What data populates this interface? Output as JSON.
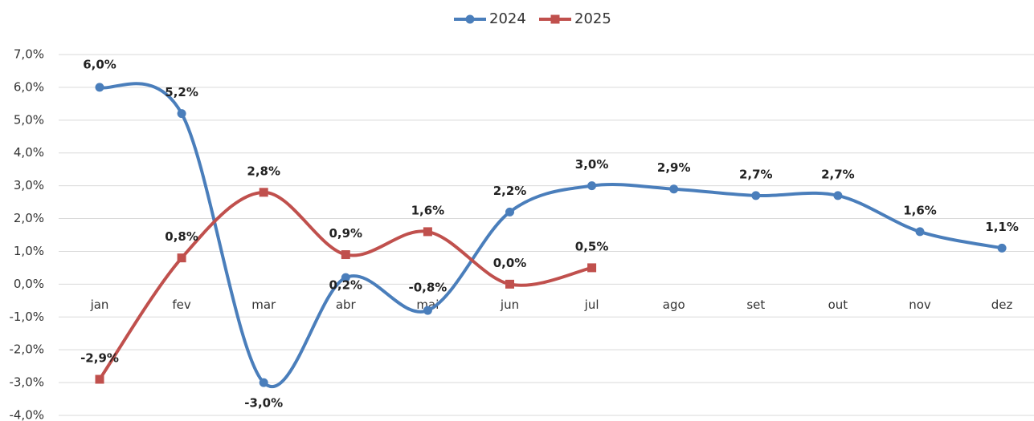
{
  "chart_data": {
    "type": "line",
    "categories": [
      "jan",
      "fev",
      "mar",
      "abr",
      "mai",
      "jun",
      "jul",
      "ago",
      "set",
      "out",
      "nov",
      "dez"
    ],
    "series": [
      {
        "name": "2024",
        "color": "#4a7ebb",
        "marker": "circle",
        "values": [
          6.0,
          5.2,
          -3.0,
          0.2,
          -0.8,
          2.2,
          3.0,
          2.9,
          2.7,
          2.7,
          1.6,
          1.1
        ],
        "value_labels": [
          "6,0%",
          "5,2%",
          "-3,0%",
          "0,2%",
          "-0,8%",
          "2,2%",
          "3,0%",
          "2,9%",
          "2,7%",
          "2,7%",
          "1,6%",
          "1,1%"
        ]
      },
      {
        "name": "2025",
        "color": "#c0504d",
        "marker": "square",
        "values": [
          -2.9,
          0.8,
          2.8,
          0.9,
          1.6,
          0.0,
          0.5,
          null,
          null,
          null,
          null,
          null
        ],
        "value_labels": [
          "-2,9%",
          "0,8%",
          "2,8%",
          "0,9%",
          "1,6%",
          "0,0%",
          "0,5%",
          null,
          null,
          null,
          null,
          null
        ]
      }
    ],
    "ylim": [
      -4,
      7
    ],
    "yticks": [
      {
        "value": -4,
        "label": "-4,0%"
      },
      {
        "value": -3,
        "label": "-3,0%"
      },
      {
        "value": -2,
        "label": "-2,0%"
      },
      {
        "value": -1,
        "label": "-1,0%"
      },
      {
        "value": 0,
        "label": "0,0%"
      },
      {
        "value": 1,
        "label": "1,0%"
      },
      {
        "value": 2,
        "label": "2,0%"
      },
      {
        "value": 3,
        "label": "3,0%"
      },
      {
        "value": 4,
        "label": "4,0%"
      },
      {
        "value": 5,
        "label": "5,0%"
      },
      {
        "value": 6,
        "label": "6,0%"
      },
      {
        "value": 7,
        "label": "7,0%"
      }
    ],
    "grid": true,
    "smooth": true,
    "legend": "top"
  }
}
